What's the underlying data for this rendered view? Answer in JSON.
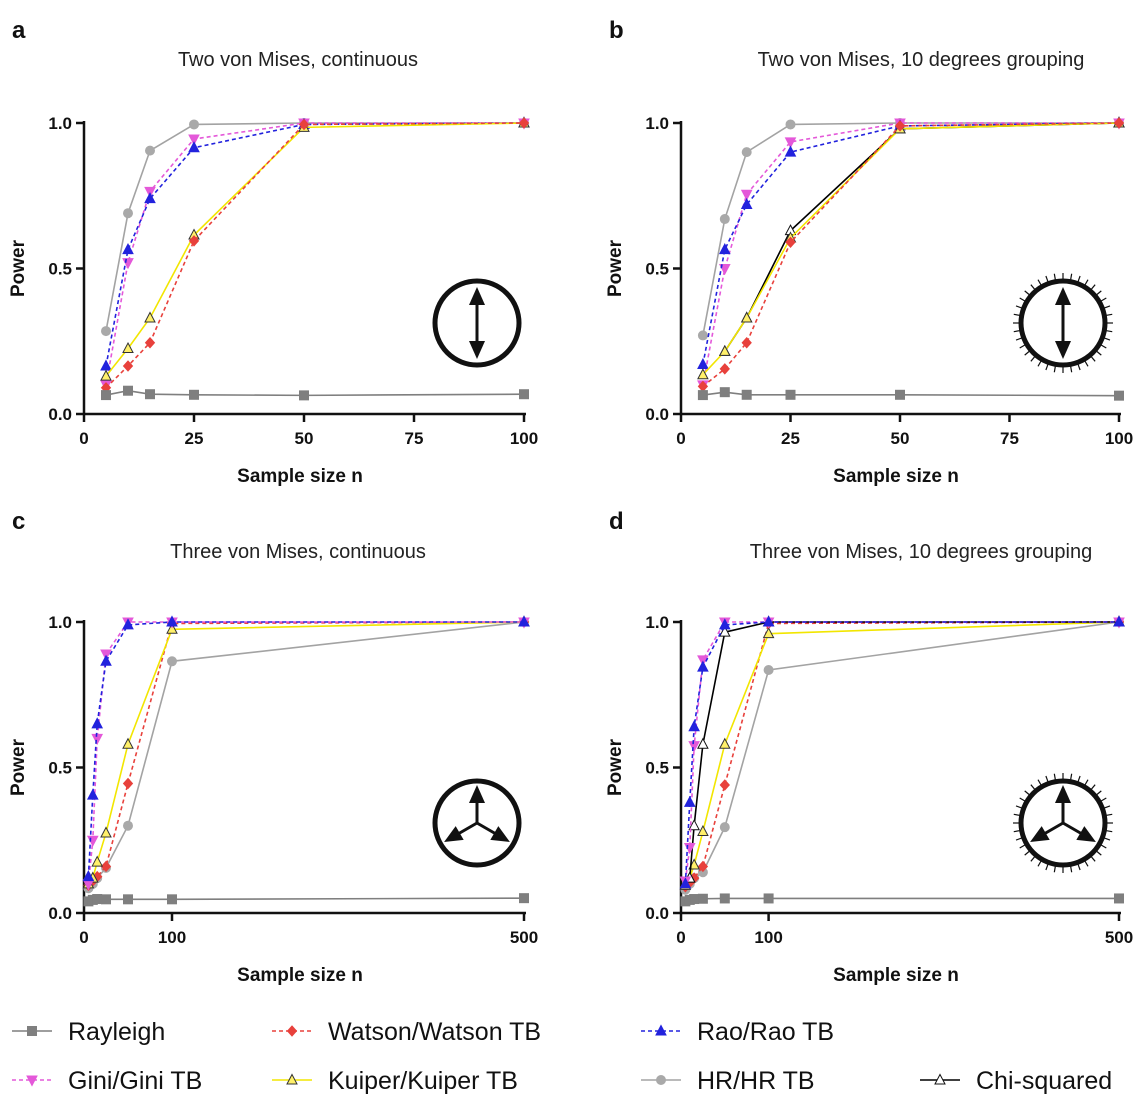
{
  "colors": {
    "rayleigh": "#7f7f7f",
    "watson": "#e8413c",
    "rao": "#2222dd",
    "gini": "#e458d9",
    "kuiper": "#f2e600",
    "kuiper_marker": "#fff06a",
    "hr": "#a3a3a3",
    "hr_marker": "#a9a9a9",
    "chi": "#000000"
  },
  "legend": {
    "position": "bottom",
    "items": [
      {
        "key": "rayleigh",
        "label": "Rayleigh"
      },
      {
        "key": "watson",
        "label": "Watson/Watson TB"
      },
      {
        "key": "rao",
        "label": "Rao/Rao TB"
      },
      {
        "key": "gini",
        "label": "Gini/Gini TB"
      },
      {
        "key": "kuiper",
        "label": "Kuiper/Kuiper TB"
      },
      {
        "key": "hr",
        "label": "HR/HR TB"
      },
      {
        "key": "chi",
        "label": "Chi-squared"
      }
    ]
  },
  "chart_data": [
    {
      "panel": "a",
      "type": "line",
      "title": "Two von Mises, continuous",
      "xlabel": "Sample size n",
      "ylabel": "Power",
      "xscale": "linear",
      "xlim": [
        0,
        100
      ],
      "ylim": [
        0,
        1
      ],
      "xticks": [
        0,
        25,
        50,
        75,
        100
      ],
      "xticklabels": [
        "0",
        "25",
        "50",
        "75",
        "100"
      ],
      "yticks": [
        0,
        0.5,
        1
      ],
      "yticklabels": [
        "0.0",
        "0.5",
        "1.0"
      ],
      "grid": false,
      "inset_icon": "two-arrow-circle",
      "series": [
        {
          "key": "hr",
          "x": [
            5,
            10,
            15,
            25,
            50,
            100
          ],
          "y": [
            0.285,
            0.69,
            0.905,
            0.995,
            1.0,
            1.0
          ]
        },
        {
          "key": "gini",
          "x": [
            5,
            10,
            15,
            25,
            50,
            100
          ],
          "y": [
            0.1,
            0.52,
            0.765,
            0.945,
            1.0,
            1.0
          ]
        },
        {
          "key": "rao",
          "x": [
            5,
            10,
            15,
            25,
            50,
            100
          ],
          "y": [
            0.165,
            0.565,
            0.74,
            0.915,
            0.995,
            1.0
          ]
        },
        {
          "key": "kuiper",
          "x": [
            5,
            10,
            15,
            25,
            50,
            100
          ],
          "y": [
            0.13,
            0.225,
            0.33,
            0.615,
            0.985,
            1.0
          ]
        },
        {
          "key": "watson",
          "x": [
            5,
            10,
            15,
            25,
            50,
            100
          ],
          "y": [
            0.09,
            0.165,
            0.245,
            0.595,
            0.995,
            1.0
          ]
        },
        {
          "key": "rayleigh",
          "x": [
            5,
            10,
            15,
            25,
            50,
            100
          ],
          "y": [
            0.065,
            0.08,
            0.068,
            0.066,
            0.064,
            0.068
          ]
        }
      ]
    },
    {
      "panel": "b",
      "type": "line",
      "title": "Two von Mises, 10 degrees grouping",
      "xlabel": "Sample size n",
      "ylabel": "Power",
      "xscale": "linear",
      "xlim": [
        0,
        100
      ],
      "ylim": [
        0,
        1
      ],
      "xticks": [
        0,
        25,
        50,
        75,
        100
      ],
      "xticklabels": [
        "0",
        "25",
        "50",
        "75",
        "100"
      ],
      "yticks": [
        0,
        0.5,
        1
      ],
      "yticklabels": [
        "0.0",
        "0.5",
        "1.0"
      ],
      "grid": false,
      "inset_icon": "two-arrow-circle-ticked",
      "series": [
        {
          "key": "hr",
          "x": [
            5,
            10,
            15,
            25,
            50,
            100
          ],
          "y": [
            0.27,
            0.67,
            0.9,
            0.995,
            1.0,
            1.0
          ]
        },
        {
          "key": "gini",
          "x": [
            5,
            10,
            15,
            25,
            50,
            100
          ],
          "y": [
            0.1,
            0.5,
            0.755,
            0.935,
            1.0,
            1.0
          ]
        },
        {
          "key": "rao",
          "x": [
            5,
            10,
            15,
            25,
            50,
            100
          ],
          "y": [
            0.17,
            0.565,
            0.72,
            0.9,
            0.99,
            1.0
          ]
        },
        {
          "key": "chi",
          "x": [
            10,
            15,
            25,
            50,
            100
          ],
          "y": [
            0.215,
            0.33,
            0.63,
            0.98,
            1.0
          ]
        },
        {
          "key": "kuiper",
          "x": [
            5,
            10,
            15,
            25,
            50,
            100
          ],
          "y": [
            0.135,
            0.215,
            0.33,
            0.605,
            0.98,
            1.0
          ]
        },
        {
          "key": "watson",
          "x": [
            5,
            10,
            15,
            25,
            50,
            100
          ],
          "y": [
            0.095,
            0.155,
            0.245,
            0.59,
            0.99,
            1.0
          ]
        },
        {
          "key": "rayleigh",
          "x": [
            5,
            10,
            15,
            25,
            50,
            100
          ],
          "y": [
            0.065,
            0.075,
            0.066,
            0.066,
            0.066,
            0.063
          ]
        }
      ]
    },
    {
      "panel": "c",
      "type": "line",
      "title": "Three von Mises, continuous",
      "xlabel": "Sample size n",
      "ylabel": "Power",
      "xscale": "broken-linear",
      "xbreak": 100,
      "xlim": [
        0,
        500
      ],
      "ylim": [
        0,
        1
      ],
      "xticks": [
        0,
        100,
        500
      ],
      "xticklabels": [
        "0",
        "100",
        "500"
      ],
      "yticks": [
        0,
        0.5,
        1
      ],
      "yticklabels": [
        "0.0",
        "0.5",
        "1.0"
      ],
      "grid": false,
      "inset_icon": "three-arrow-circle",
      "series": [
        {
          "key": "hr",
          "x": [
            5,
            10,
            15,
            25,
            50,
            100,
            500
          ],
          "y": [
            0.085,
            0.1,
            0.12,
            0.155,
            0.3,
            0.865,
            1.0
          ]
        },
        {
          "key": "watson",
          "x": [
            5,
            10,
            15,
            25,
            50,
            100,
            500
          ],
          "y": [
            0.095,
            0.11,
            0.125,
            0.16,
            0.445,
            0.995,
            1.0
          ]
        },
        {
          "key": "kuiper",
          "x": [
            5,
            10,
            15,
            25,
            50,
            100,
            500
          ],
          "y": [
            0.1,
            0.12,
            0.175,
            0.275,
            0.58,
            0.975,
            1.0
          ]
        },
        {
          "key": "gini",
          "x": [
            5,
            10,
            15,
            25,
            50,
            100,
            500
          ],
          "y": [
            0.1,
            0.25,
            0.6,
            0.89,
            1.0,
            1.0,
            1.0
          ]
        },
        {
          "key": "rao",
          "x": [
            5,
            10,
            15,
            25,
            50,
            100,
            500
          ],
          "y": [
            0.125,
            0.405,
            0.65,
            0.865,
            0.99,
            1.0,
            1.0
          ]
        },
        {
          "key": "rayleigh",
          "x": [
            5,
            10,
            15,
            25,
            50,
            100,
            500
          ],
          "y": [
            0.04,
            0.045,
            0.048,
            0.047,
            0.047,
            0.047,
            0.051
          ]
        }
      ]
    },
    {
      "panel": "d",
      "type": "line",
      "title": "Three von Mises, 10 degrees grouping",
      "xlabel": "Sample size n",
      "ylabel": "Power",
      "xscale": "broken-linear",
      "xbreak": 100,
      "xlim": [
        0,
        500
      ],
      "ylim": [
        0,
        1
      ],
      "xticks": [
        0,
        100,
        500
      ],
      "xticklabels": [
        "0",
        "100",
        "500"
      ],
      "yticks": [
        0,
        0.5,
        1
      ],
      "yticklabels": [
        "0.0",
        "0.5",
        "1.0"
      ],
      "grid": false,
      "inset_icon": "three-arrow-circle-ticked",
      "series": [
        {
          "key": "hr",
          "x": [
            5,
            10,
            15,
            25,
            50,
            100,
            500
          ],
          "y": [
            0.08,
            0.1,
            0.12,
            0.14,
            0.295,
            0.835,
            1.0
          ]
        },
        {
          "key": "watson",
          "x": [
            5,
            10,
            15,
            25,
            50,
            100,
            500
          ],
          "y": [
            0.09,
            0.105,
            0.12,
            0.16,
            0.44,
            0.995,
            1.0
          ]
        },
        {
          "key": "kuiper",
          "x": [
            5,
            10,
            15,
            25,
            50,
            100,
            500
          ],
          "y": [
            0.095,
            0.12,
            0.165,
            0.28,
            0.58,
            0.96,
            1.0
          ]
        },
        {
          "key": "chi",
          "x": [
            10,
            15,
            25,
            50,
            100,
            500
          ],
          "y": [
            0.12,
            0.3,
            0.58,
            0.965,
            1.0,
            1.0
          ]
        },
        {
          "key": "gini",
          "x": [
            5,
            10,
            15,
            25,
            50,
            100,
            500
          ],
          "y": [
            0.11,
            0.225,
            0.575,
            0.87,
            1.0,
            1.0,
            1.0
          ]
        },
        {
          "key": "rao",
          "x": [
            5,
            10,
            15,
            25,
            50,
            100,
            500
          ],
          "y": [
            0.1,
            0.38,
            0.64,
            0.845,
            0.99,
            1.0,
            1.0
          ]
        },
        {
          "key": "rayleigh",
          "x": [
            5,
            10,
            15,
            25,
            50,
            100,
            500
          ],
          "y": [
            0.04,
            0.045,
            0.048,
            0.049,
            0.05,
            0.05,
            0.05
          ]
        }
      ]
    }
  ]
}
